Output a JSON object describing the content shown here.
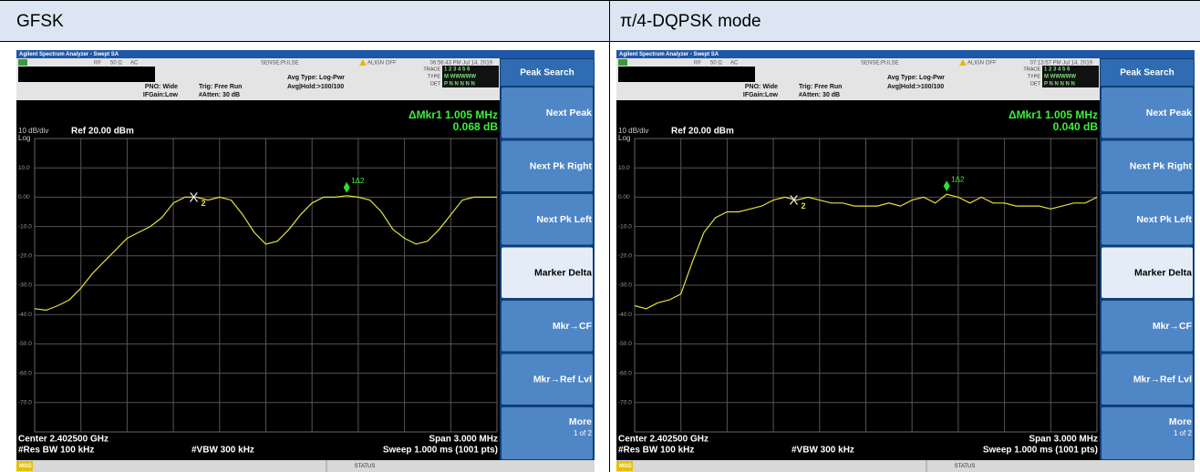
{
  "header": {
    "left": "GFSK",
    "right": "π/4-DQPSK mode"
  },
  "screens": [
    {
      "title_bar": "Agilent Spectrum Analyzer - Swept SA",
      "status": [
        "RF",
        "50 Ω",
        "AC",
        "SENSE:PULSE",
        "ALIGN OFF",
        "06:56:43 PM Jul 14, 2019"
      ],
      "settings": [
        "PNO: Wide",
        "IFGain:Low",
        "Trig: Free Run",
        "#Atten: 30 dB",
        "Avg Type: Log-Pwr",
        "Avg|Hold:>100/100"
      ],
      "trace_info": {
        "trace_label": "TRACE",
        "trace": "1 2 3 4 5 6",
        "type_label": "TYPE",
        "type": "M WWWWW",
        "det_label": "DET",
        "det": "P N N N N N"
      },
      "scale": "10 dB/div",
      "log": "Log",
      "ref": "Ref 20.00 dBm",
      "marker_readout": [
        "ΔMkr1 1.005 MHz",
        "0.068 dB"
      ],
      "chart": {
        "type": "line",
        "color": "#e6e13c",
        "ylim": [
          -80,
          20
        ],
        "grid": true,
        "yticks": [
          {
            "value": 10,
            "label": "10.0"
          },
          {
            "value": 0,
            "label": "0.00"
          },
          {
            "value": -10,
            "label": "-10.0"
          },
          {
            "value": -20,
            "label": "-20.0"
          },
          {
            "value": -30,
            "label": "-30.0"
          },
          {
            "value": -40,
            "label": "-40.0"
          },
          {
            "value": -50,
            "label": "-50.0"
          },
          {
            "value": -60,
            "label": "-60.0"
          },
          {
            "value": -70,
            "label": "-70.0"
          }
        ],
        "values": [
          -38,
          -38.5,
          -37,
          -35,
          -31,
          -26,
          -22,
          -18,
          -14,
          -12,
          -10,
          -7,
          -2,
          0,
          0,
          -1,
          0,
          -1,
          -6,
          -12,
          -16,
          -15,
          -11,
          -6,
          -2,
          0,
          0,
          0.5,
          0,
          -1,
          -5,
          -11,
          -14,
          -16,
          -15,
          -11,
          -6,
          -1,
          0,
          0,
          0
        ]
      },
      "markers": [
        "X",
        "2",
        "1Δ2"
      ],
      "footer": [
        "Center 2.402500 GHz",
        "#Res BW 100 kHz",
        "#VBW 300 kHz",
        "Span 3.000 MHz",
        "Sweep  1.000 ms (1001 pts)"
      ],
      "softkeys": {
        "title": "Peak Search",
        "keys": [
          "Next Peak",
          "Next Pk Right",
          "Next Pk Left",
          "Marker Delta",
          "Mkr→CF",
          "Mkr→Ref Lvl"
        ],
        "more": "More",
        "more_page": "1 of 2"
      },
      "msg": "MSG",
      "status_bar": "STATUS"
    },
    {
      "title_bar": "Agilent Spectrum Analyzer - Swept SA",
      "status": [
        "RF",
        "50 Ω",
        "AC",
        "SENSE:PULSE",
        "ALIGN OFF",
        "07:13:57 PM Jul 14, 2019"
      ],
      "settings": [
        "PNO: Wide",
        "IFGain:Low",
        "Trig: Free Run",
        "#Atten: 30 dB",
        "Avg Type: Log-Pwr",
        "Avg|Hold:>100/100"
      ],
      "trace_info": {
        "trace_label": "TRACE",
        "trace": "1 2 3 4 5 6",
        "type_label": "TYPE",
        "type": "M WWWWW",
        "det_label": "DET",
        "det": "P N N N N N"
      },
      "scale": "10 dB/div",
      "log": "Log",
      "ref": "Ref 20.00 dBm",
      "marker_readout": [
        "ΔMkr1 1.005 MHz",
        "0.040 dB"
      ],
      "chart": {
        "type": "line",
        "color": "#e6e13c",
        "ylim": [
          -80,
          20
        ],
        "grid": true,
        "yticks": [
          {
            "value": 10,
            "label": "10.0"
          },
          {
            "value": 0,
            "label": "0.00"
          },
          {
            "value": -10,
            "label": "-10.0"
          },
          {
            "value": -20,
            "label": "-20.0"
          },
          {
            "value": -30,
            "label": "-30.0"
          },
          {
            "value": -40,
            "label": "-40.0"
          },
          {
            "value": -50,
            "label": "-50.0"
          },
          {
            "value": -60,
            "label": "-60.0"
          },
          {
            "value": -70,
            "label": "-70.0"
          }
        ],
        "values": [
          -37,
          -38,
          -36,
          -35,
          -33,
          -22,
          -12,
          -7,
          -5,
          -5,
          -4,
          -3,
          -1,
          0,
          -1,
          0,
          -1,
          -2,
          -2,
          -3,
          -3,
          -3,
          -2,
          -3,
          -1,
          0,
          -2,
          1,
          0,
          -2,
          0,
          -2,
          -2,
          -3,
          -3,
          -3,
          -4,
          -3,
          -2,
          -2,
          0
        ]
      },
      "markers": [
        "X",
        "2",
        "1Δ2"
      ],
      "footer": [
        "Center 2.402500 GHz",
        "#Res BW 100 kHz",
        "#VBW 300 kHz",
        "Span 3.000 MHz",
        "Sweep  1.000 ms (1001 pts)"
      ],
      "softkeys": {
        "title": "Peak Search",
        "keys": [
          "Next Peak",
          "Next Pk Right",
          "Next Pk Left",
          "Marker Delta",
          "Mkr→CF",
          "Mkr→Ref Lvl"
        ],
        "more": "More",
        "more_page": "1 of 2"
      },
      "msg": "MSG",
      "status_bar": "STATUS"
    }
  ]
}
